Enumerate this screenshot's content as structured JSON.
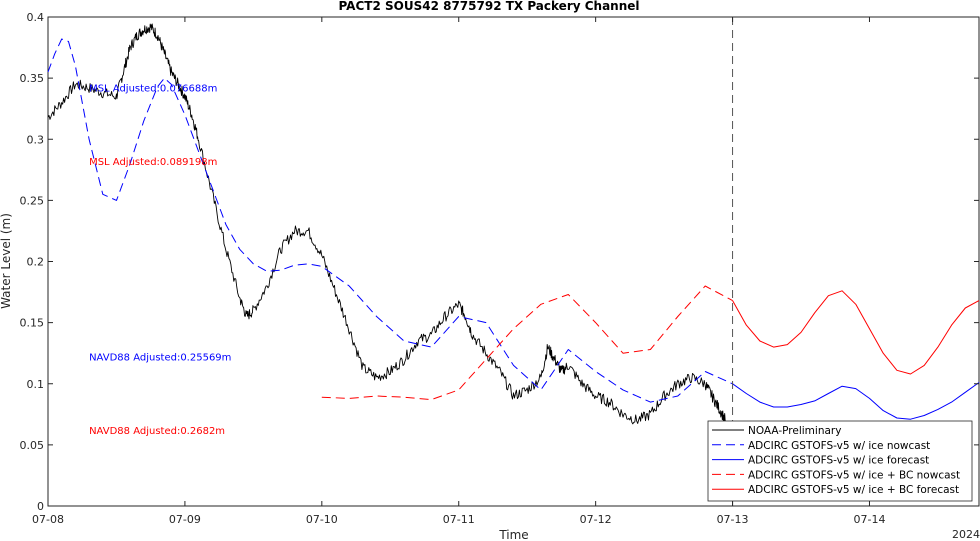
{
  "chart_data": {
    "type": "line",
    "title": "PACT2 SOUS42 8775792 TX Packery Channel",
    "xlabel": "Time",
    "ylabel": "Water Level (m)",
    "year_label": "2024",
    "xlim": [
      0,
      6.8
    ],
    "ylim": [
      0,
      0.4
    ],
    "grid": false,
    "legend_position": "bottom-right",
    "x_ticks": [
      {
        "value": 0,
        "label": "07-08"
      },
      {
        "value": 1,
        "label": "07-09"
      },
      {
        "value": 2,
        "label": "07-10"
      },
      {
        "value": 3,
        "label": "07-11"
      },
      {
        "value": 4,
        "label": "07-12"
      },
      {
        "value": 5,
        "label": "07-13"
      },
      {
        "value": 6,
        "label": "07-14"
      }
    ],
    "y_ticks": [
      {
        "value": 0,
        "label": "0"
      },
      {
        "value": 0.05,
        "label": "0.05"
      },
      {
        "value": 0.1,
        "label": "0.1"
      },
      {
        "value": 0.15,
        "label": "0.15"
      },
      {
        "value": 0.2,
        "label": "0.2"
      },
      {
        "value": 0.25,
        "label": "0.25"
      },
      {
        "value": 0.3,
        "label": "0.3"
      },
      {
        "value": 0.35,
        "label": "0.35"
      },
      {
        "value": 0.4,
        "label": "0.4"
      }
    ],
    "vline_x": 5.0,
    "annotations": [
      {
        "text": "MSL Adjusted:0.076688m",
        "x": 0.3,
        "y": 0.339,
        "color": "#0000ff"
      },
      {
        "text": "MSL Adjusted:0.089198m",
        "x": 0.3,
        "y": 0.279,
        "color": "#ff0000"
      },
      {
        "text": "NAVD88 Adjusted:0.25569m",
        "x": 0.3,
        "y": 0.119,
        "color": "#0000ff"
      },
      {
        "text": "NAVD88 Adjusted:0.2682m",
        "x": 0.3,
        "y": 0.059,
        "color": "#ff0000"
      }
    ],
    "series": [
      {
        "name": "NOAA-Preliminary",
        "color": "#000000",
        "style": "solid",
        "noisy": true,
        "x": [
          0,
          0.1,
          0.2,
          0.3,
          0.4,
          0.5,
          0.55,
          0.6,
          0.65,
          0.7,
          0.75,
          0.8,
          0.85,
          0.9,
          0.95,
          1.0,
          1.05,
          1.1,
          1.2,
          1.3,
          1.4,
          1.45,
          1.5,
          1.6,
          1.7,
          1.8,
          1.9,
          2.0,
          2.1,
          2.2,
          2.3,
          2.4,
          2.5,
          2.6,
          2.7,
          2.8,
          2.9,
          3.0,
          3.05,
          3.1,
          3.2,
          3.3,
          3.4,
          3.5,
          3.6,
          3.65,
          3.7,
          3.75,
          3.8,
          3.9,
          4.0,
          4.1,
          4.2,
          4.3,
          4.4,
          4.5,
          4.6,
          4.7,
          4.8,
          4.85,
          4.9,
          4.95
        ],
        "y": [
          0.318,
          0.33,
          0.345,
          0.342,
          0.338,
          0.335,
          0.355,
          0.375,
          0.385,
          0.39,
          0.392,
          0.385,
          0.37,
          0.355,
          0.345,
          0.335,
          0.32,
          0.3,
          0.255,
          0.21,
          0.17,
          0.155,
          0.16,
          0.18,
          0.21,
          0.225,
          0.225,
          0.205,
          0.175,
          0.145,
          0.113,
          0.105,
          0.11,
          0.12,
          0.135,
          0.14,
          0.155,
          0.165,
          0.155,
          0.14,
          0.125,
          0.11,
          0.09,
          0.095,
          0.105,
          0.13,
          0.12,
          0.11,
          0.115,
          0.1,
          0.09,
          0.085,
          0.075,
          0.07,
          0.075,
          0.09,
          0.1,
          0.105,
          0.1,
          0.09,
          0.08,
          0.07
        ]
      },
      {
        "name": "ADCIRC GSTOFS-v5 w/ ice nowcast",
        "color": "#0000ff",
        "style": "dashed",
        "x": [
          0,
          0.05,
          0.1,
          0.15,
          0.2,
          0.3,
          0.4,
          0.5,
          0.6,
          0.7,
          0.8,
          0.85,
          0.9,
          1.0,
          1.1,
          1.2,
          1.3,
          1.4,
          1.5,
          1.6,
          1.7,
          1.8,
          1.9,
          2.0,
          2.2,
          2.4,
          2.6,
          2.8,
          3.0,
          3.2,
          3.4,
          3.6,
          3.8,
          4.0,
          4.2,
          4.4,
          4.6,
          4.8,
          5.0
        ],
        "y": [
          0.355,
          0.37,
          0.382,
          0.38,
          0.36,
          0.3,
          0.255,
          0.25,
          0.28,
          0.315,
          0.343,
          0.35,
          0.345,
          0.32,
          0.29,
          0.26,
          0.23,
          0.21,
          0.198,
          0.192,
          0.193,
          0.197,
          0.198,
          0.196,
          0.18,
          0.155,
          0.135,
          0.13,
          0.155,
          0.15,
          0.115,
          0.095,
          0.128,
          0.11,
          0.095,
          0.085,
          0.09,
          0.11,
          0.1
        ]
      },
      {
        "name": "ADCIRC GSTOFS-v5 w/ ice forecast",
        "color": "#0000ff",
        "style": "solid",
        "x": [
          5.0,
          5.1,
          5.2,
          5.3,
          5.4,
          5.5,
          5.6,
          5.7,
          5.8,
          5.9,
          6.0,
          6.1,
          6.2,
          6.3,
          6.4,
          6.5,
          6.6,
          6.7,
          6.8
        ],
        "y": [
          0.1,
          0.092,
          0.085,
          0.081,
          0.081,
          0.083,
          0.086,
          0.092,
          0.098,
          0.096,
          0.088,
          0.078,
          0.072,
          0.071,
          0.074,
          0.079,
          0.085,
          0.093,
          0.101
        ]
      },
      {
        "name": "ADCIRC GSTOFS-v5 w/ ice + BC nowcast",
        "color": "#ff0000",
        "style": "dashed",
        "x": [
          2.0,
          2.2,
          2.4,
          2.6,
          2.8,
          3.0,
          3.2,
          3.4,
          3.6,
          3.8,
          4.0,
          4.2,
          4.4,
          4.6,
          4.8,
          5.0
        ],
        "y": [
          0.089,
          0.088,
          0.09,
          0.089,
          0.087,
          0.095,
          0.12,
          0.145,
          0.165,
          0.173,
          0.15,
          0.125,
          0.128,
          0.155,
          0.18,
          0.168
        ]
      },
      {
        "name": "ADCIRC GSTOFS-v5 w/ ice + BC forecast",
        "color": "#ff0000",
        "style": "solid",
        "x": [
          5.0,
          5.1,
          5.2,
          5.3,
          5.4,
          5.5,
          5.6,
          5.7,
          5.8,
          5.9,
          6.0,
          6.1,
          6.2,
          6.3,
          6.4,
          6.5,
          6.6,
          6.7,
          6.8
        ],
        "y": [
          0.168,
          0.148,
          0.135,
          0.13,
          0.132,
          0.142,
          0.158,
          0.172,
          0.176,
          0.165,
          0.145,
          0.125,
          0.111,
          0.108,
          0.115,
          0.13,
          0.148,
          0.162,
          0.168
        ]
      }
    ]
  }
}
